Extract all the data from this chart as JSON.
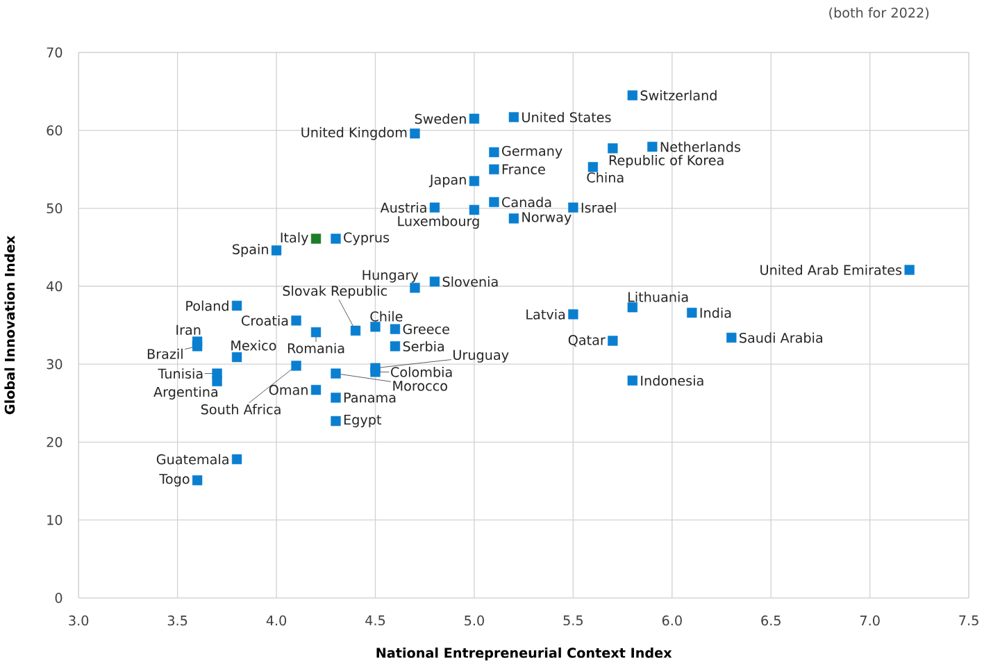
{
  "chart_data": {
    "type": "scatter",
    "xlabel": "National Entrepreneurial Context Index",
    "ylabel": "Global Innovation Index",
    "xlim": [
      3.0,
      7.5
    ],
    "xticks": [
      {
        "value": 3.0,
        "label": "3.0"
      },
      3.5,
      {
        "value": 4.0,
        "label": "4.0"
      },
      4.5,
      {
        "value": 5.0,
        "label": "5.0"
      },
      5.5,
      {
        "value": 6.0,
        "label": "6.0"
      },
      6.5,
      {
        "value": 7.0,
        "label": "7.0"
      },
      7.5
    ],
    "ylim": [
      0,
      70
    ],
    "yticks": [
      0,
      10,
      20,
      30,
      40,
      50,
      60,
      70
    ],
    "grid": true,
    "marker": "square",
    "series": [
      {
        "color": "#0a7fd0",
        "x": [
          5.8,
          5.0,
          5.2,
          4.7,
          5.1,
          5.9,
          5.7,
          5.6,
          5.1,
          5.0,
          4.8,
          5.0,
          5.1,
          5.5,
          5.2,
          4.3,
          4.0,
          7.2,
          4.7,
          4.8,
          3.8,
          5.8,
          5.5,
          6.1,
          4.1,
          4.4,
          4.2,
          4.5,
          4.6,
          3.6,
          3.6,
          4.6,
          5.7,
          6.3,
          3.8,
          4.1,
          4.5,
          4.5,
          4.3,
          3.7,
          3.7,
          5.8,
          4.2,
          4.3,
          4.3,
          3.8,
          3.6
        ],
        "values": [
          64.5,
          61.5,
          61.7,
          59.6,
          57.2,
          57.9,
          57.7,
          55.3,
          55.0,
          53.5,
          50.1,
          49.8,
          50.8,
          50.1,
          48.7,
          46.1,
          44.6,
          42.1,
          39.8,
          40.6,
          37.5,
          37.3,
          36.4,
          36.6,
          35.6,
          34.3,
          34.1,
          34.8,
          34.5,
          32.9,
          32.3,
          32.3,
          33.0,
          33.4,
          30.9,
          29.8,
          29.5,
          29.0,
          28.8,
          28.8,
          27.8,
          27.9,
          26.7,
          25.7,
          22.7,
          17.8,
          15.1
        ]
      },
      {
        "color": "#1e7d2a",
        "x": [
          4.2
        ],
        "values": [
          46.1
        ]
      }
    ],
    "annotations": [
      {
        "text": "Switzerland",
        "x": 5.8,
        "y": 64.5
      },
      {
        "text": "Sweden",
        "x": 5.0,
        "y": 61.5
      },
      {
        "text": "United States",
        "x": 5.2,
        "y": 61.7
      },
      {
        "text": "United Kingdom",
        "x": 4.7,
        "y": 59.6
      },
      {
        "text": "Germany",
        "x": 5.1,
        "y": 57.2
      },
      {
        "text": "Netherlands",
        "x": 5.9,
        "y": 57.9
      },
      {
        "text": "Republic of Korea",
        "x": 5.7,
        "y": 57.7
      },
      {
        "text": "China",
        "x": 5.6,
        "y": 55.3
      },
      {
        "text": "France",
        "x": 5.1,
        "y": 55.0
      },
      {
        "text": "Japan",
        "x": 5.0,
        "y": 53.5
      },
      {
        "text": "Austria",
        "x": 4.8,
        "y": 50.1
      },
      {
        "text": "Luxembourg",
        "x": 5.0,
        "y": 49.8
      },
      {
        "text": "Canada",
        "x": 5.1,
        "y": 50.8
      },
      {
        "text": "Israel",
        "x": 5.5,
        "y": 50.1
      },
      {
        "text": "Norway",
        "x": 5.2,
        "y": 48.7
      },
      {
        "text": "Italy",
        "x": 4.2,
        "y": 46.1
      },
      {
        "text": "Cyprus",
        "x": 4.3,
        "y": 46.1
      },
      {
        "text": "Spain",
        "x": 4.0,
        "y": 44.6
      },
      {
        "text": "United Arab Emirates",
        "x": 7.2,
        "y": 42.1
      },
      {
        "text": "Hungary",
        "x": 4.7,
        "y": 39.8
      },
      {
        "text": "Slovenia",
        "x": 4.8,
        "y": 40.6
      },
      {
        "text": "Poland",
        "x": 3.8,
        "y": 37.5
      },
      {
        "text": "Lithuania",
        "x": 5.8,
        "y": 37.3
      },
      {
        "text": "Latvia",
        "x": 5.5,
        "y": 36.4
      },
      {
        "text": "India",
        "x": 6.1,
        "y": 36.6
      },
      {
        "text": "Croatia",
        "x": 4.1,
        "y": 35.6
      },
      {
        "text": "Slovak Republic",
        "x": 4.4,
        "y": 34.3
      },
      {
        "text": "Romania",
        "x": 4.2,
        "y": 34.1
      },
      {
        "text": "Chile",
        "x": 4.5,
        "y": 34.8
      },
      {
        "text": "Greece",
        "x": 4.6,
        "y": 34.5
      },
      {
        "text": "Iran",
        "x": 3.6,
        "y": 32.9
      },
      {
        "text": "Brazil",
        "x": 3.6,
        "y": 32.3
      },
      {
        "text": "Serbia",
        "x": 4.6,
        "y": 32.3
      },
      {
        "text": "Qatar",
        "x": 5.7,
        "y": 33.0
      },
      {
        "text": "Saudi Arabia",
        "x": 6.3,
        "y": 33.4
      },
      {
        "text": "Mexico",
        "x": 3.8,
        "y": 30.9
      },
      {
        "text": "South Africa",
        "x": 4.1,
        "y": 29.8
      },
      {
        "text": "Uruguay",
        "x": 4.5,
        "y": 29.5
      },
      {
        "text": "Colombia",
        "x": 4.5,
        "y": 29.0
      },
      {
        "text": "Morocco",
        "x": 4.3,
        "y": 28.8
      },
      {
        "text": "Tunisia",
        "x": 3.7,
        "y": 28.8
      },
      {
        "text": "Argentina",
        "x": 3.7,
        "y": 27.8
      },
      {
        "text": "Indonesia",
        "x": 5.8,
        "y": 27.9
      },
      {
        "text": "Oman",
        "x": 4.2,
        "y": 26.7
      },
      {
        "text": "Panama",
        "x": 4.3,
        "y": 25.7
      },
      {
        "text": "Egypt",
        "x": 4.3,
        "y": 22.7
      },
      {
        "text": "Guatemala",
        "x": 3.8,
        "y": 17.8
      },
      {
        "text": "Togo",
        "x": 3.6,
        "y": 15.1
      },
      "(both for 2022)"
    ]
  }
}
